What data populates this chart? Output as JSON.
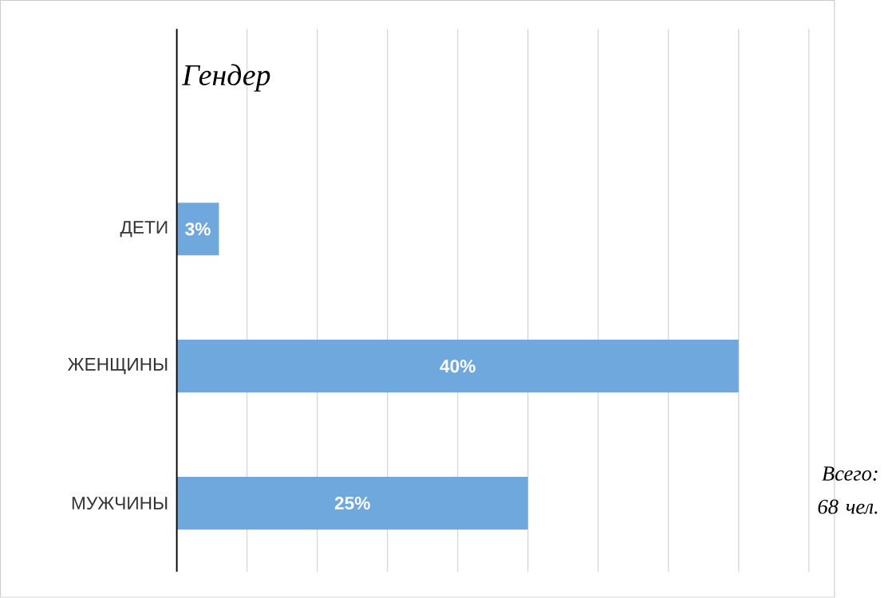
{
  "chart_data": {
    "type": "bar",
    "orientation": "horizontal",
    "title": "Гендер",
    "categories": [
      "ДЕТИ",
      "ЖЕНЩИНЫ",
      "МУЖЧИНЫ"
    ],
    "values": [
      3,
      40,
      25
    ],
    "value_labels": [
      "3%",
      "40%",
      "25%"
    ],
    "color": "#6fa8dc",
    "xlim": [
      0,
      45
    ],
    "xticks": [
      {
        "value": 0,
        "label": null
      },
      {
        "value": 5,
        "label": null
      },
      {
        "value": 10,
        "label": null
      },
      {
        "value": 15,
        "label": null
      },
      {
        "value": 20,
        "label": null
      },
      {
        "value": 25,
        "label": null
      },
      {
        "value": 30,
        "label": null
      },
      {
        "value": 35,
        "label": null
      },
      {
        "value": 40,
        "label": null
      },
      {
        "value": 45,
        "label": null
      }
    ],
    "tick_labels": "y",
    "grid": "x",
    "annotations": [
      "Всего: 68 чел."
    ]
  }
}
